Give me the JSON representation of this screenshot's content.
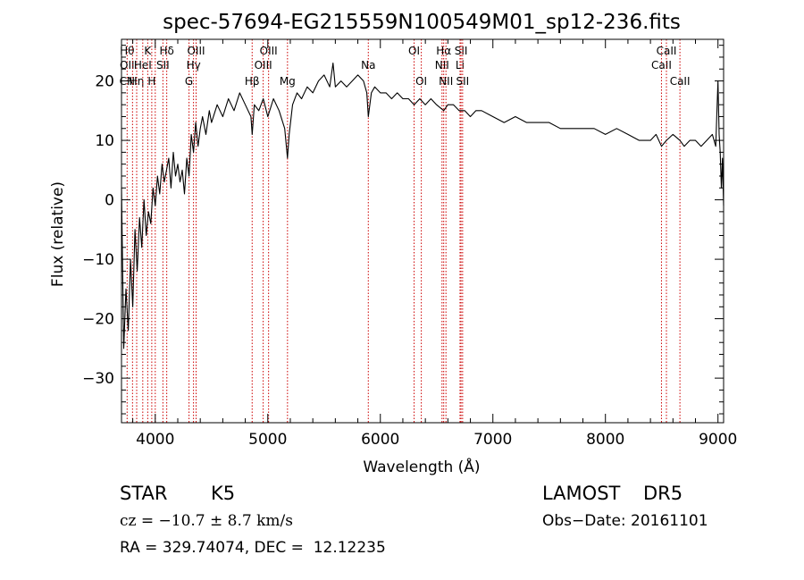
{
  "chart_data": {
    "type": "line",
    "title": "spec-57694-EG215559N100549M01_sp12-236.fits",
    "xlabel": "Wavelength (Å)",
    "ylabel": "Flux (relative)",
    "xlim": [
      3700,
      9050
    ],
    "ylim": [
      -37.5,
      27
    ],
    "xticks": [
      4000,
      5000,
      6000,
      7000,
      8000,
      9000
    ],
    "yticks": [
      -30,
      -20,
      -10,
      0,
      10,
      20
    ],
    "grid": false,
    "series": [
      {
        "x": [
          3700,
          3720,
          3740,
          3760,
          3780,
          3800,
          3820,
          3840,
          3860,
          3880,
          3900,
          3920,
          3940,
          3960,
          3980,
          4000,
          4020,
          4040,
          4060,
          4080,
          4100,
          4120,
          4140,
          4160,
          4180,
          4200,
          4220,
          4240,
          4260,
          4280,
          4300,
          4320,
          4340,
          4360,
          4380,
          4400,
          4420,
          4450,
          4480,
          4500,
          4550,
          4600,
          4650,
          4700,
          4750,
          4800,
          4850,
          4861,
          4880,
          4920,
          4960,
          5000,
          5050,
          5100,
          5150,
          5175,
          5190,
          5220,
          5260,
          5300,
          5350,
          5400,
          5450,
          5500,
          5550,
          5580,
          5600,
          5650,
          5700,
          5750,
          5800,
          5850,
          5880,
          5893,
          5920,
          5950,
          6000,
          6050,
          6100,
          6150,
          6200,
          6250,
          6300,
          6350,
          6400,
          6450,
          6500,
          6563,
          6600,
          6650,
          6700,
          6750,
          6800,
          6850,
          6900,
          7000,
          7100,
          7200,
          7300,
          7400,
          7500,
          7600,
          7700,
          7800,
          7900,
          8000,
          8100,
          8200,
          8300,
          8400,
          8450,
          8498,
          8542,
          8600,
          8662,
          8700,
          8750,
          8800,
          8850,
          8900,
          8950,
          8980,
          9000,
          9010,
          9020,
          9030,
          9040,
          9050
        ],
        "values": [
          2,
          -25,
          -15,
          -22,
          -10,
          -18,
          -5,
          -12,
          -3,
          -8,
          0,
          -6,
          -2,
          -4,
          2,
          -1,
          4,
          1,
          6,
          3,
          5,
          7,
          2,
          8,
          4,
          6,
          3,
          5,
          1,
          7,
          4,
          11,
          8,
          13,
          9,
          12,
          14,
          11,
          15,
          13,
          16,
          14,
          17,
          15,
          18,
          16,
          14,
          11,
          16,
          15,
          17,
          14,
          17,
          15,
          12,
          7,
          11,
          16,
          18,
          17,
          19,
          18,
          20,
          21,
          19,
          23,
          19,
          20,
          19,
          20,
          21,
          20,
          18,
          14,
          18,
          19,
          18,
          18,
          17,
          18,
          17,
          17,
          16,
          17,
          16,
          17,
          16,
          15,
          16,
          16,
          15,
          15,
          14,
          15,
          15,
          14,
          13,
          14,
          13,
          13,
          13,
          12,
          12,
          12,
          12,
          11,
          12,
          11,
          10,
          10,
          11,
          9,
          10,
          11,
          10,
          9,
          10,
          10,
          9,
          10,
          11,
          9,
          20,
          11,
          8,
          2,
          7,
          -1
        ]
      }
    ],
    "line_marks": [
      {
        "x": 3750,
        "rows": [
          [
            1,
            "Hθ"
          ],
          [
            2,
            "OII"
          ],
          [
            3,
            "CN"
          ]
        ]
      },
      {
        "x": 3798,
        "rows": []
      },
      {
        "x": 3835,
        "rows": [
          [
            3,
            "Hη"
          ]
        ]
      },
      {
        "x": 3889,
        "rows": [
          [
            2,
            "HeI"
          ]
        ]
      },
      {
        "x": 3933,
        "rows": [
          [
            1,
            "K"
          ]
        ]
      },
      {
        "x": 3969,
        "rows": [
          [
            3,
            "H"
          ]
        ]
      },
      {
        "x": 4000,
        "rows": []
      },
      {
        "x": 4068,
        "rows": [
          [
            2,
            "SII"
          ]
        ]
      },
      {
        "x": 4102,
        "rows": [
          [
            1,
            "Hδ"
          ]
        ]
      },
      {
        "x": 4300,
        "rows": [
          [
            3,
            "G"
          ]
        ]
      },
      {
        "x": 4340,
        "rows": [
          [
            2,
            "Hγ"
          ]
        ]
      },
      {
        "x": 4363,
        "rows": [
          [
            1,
            "OIII"
          ]
        ]
      },
      {
        "x": 4861,
        "rows": [
          [
            3,
            "Hβ"
          ]
        ]
      },
      {
        "x": 4959,
        "rows": [
          [
            2,
            "OIII"
          ]
        ]
      },
      {
        "x": 5007,
        "rows": [
          [
            1,
            "OIII"
          ]
        ]
      },
      {
        "x": 5175,
        "rows": [
          [
            3,
            "Mg"
          ]
        ]
      },
      {
        "x": 5893,
        "rows": [
          [
            2,
            "Na"
          ]
        ]
      },
      {
        "x": 6300,
        "rows": [
          [
            1,
            "OI"
          ]
        ]
      },
      {
        "x": 6364,
        "rows": [
          [
            3,
            "OI"
          ]
        ]
      },
      {
        "x": 6548,
        "rows": [
          [
            2,
            "NII"
          ]
        ]
      },
      {
        "x": 6563,
        "rows": [
          [
            1,
            "Hα"
          ]
        ]
      },
      {
        "x": 6583,
        "rows": [
          [
            3,
            "NII"
          ]
        ]
      },
      {
        "x": 6708,
        "rows": [
          [
            2,
            "Li"
          ]
        ]
      },
      {
        "x": 6717,
        "rows": [
          [
            1,
            "SII"
          ]
        ]
      },
      {
        "x": 6731,
        "rows": [
          [
            3,
            "SII"
          ]
        ]
      },
      {
        "x": 8498,
        "rows": [
          [
            2,
            "CaII"
          ]
        ]
      },
      {
        "x": 8542,
        "rows": [
          [
            1,
            "CaII"
          ]
        ]
      },
      {
        "x": 8662,
        "rows": [
          [
            3,
            "CaII"
          ]
        ]
      }
    ]
  },
  "info": {
    "object_class": "STAR",
    "subclass": "K5",
    "survey": "LAMOST",
    "release": "DR5",
    "redshift_line": "cz = −10.7 ± 8.7 km/s",
    "obs_date_line": "Obs−Date: 20161101",
    "coords_line": "RA = 329.74074, DEC =  12.12235"
  },
  "colors": {
    "spectrum": "#000000",
    "line_markers": "#cc0000",
    "background": "#ffffff"
  }
}
